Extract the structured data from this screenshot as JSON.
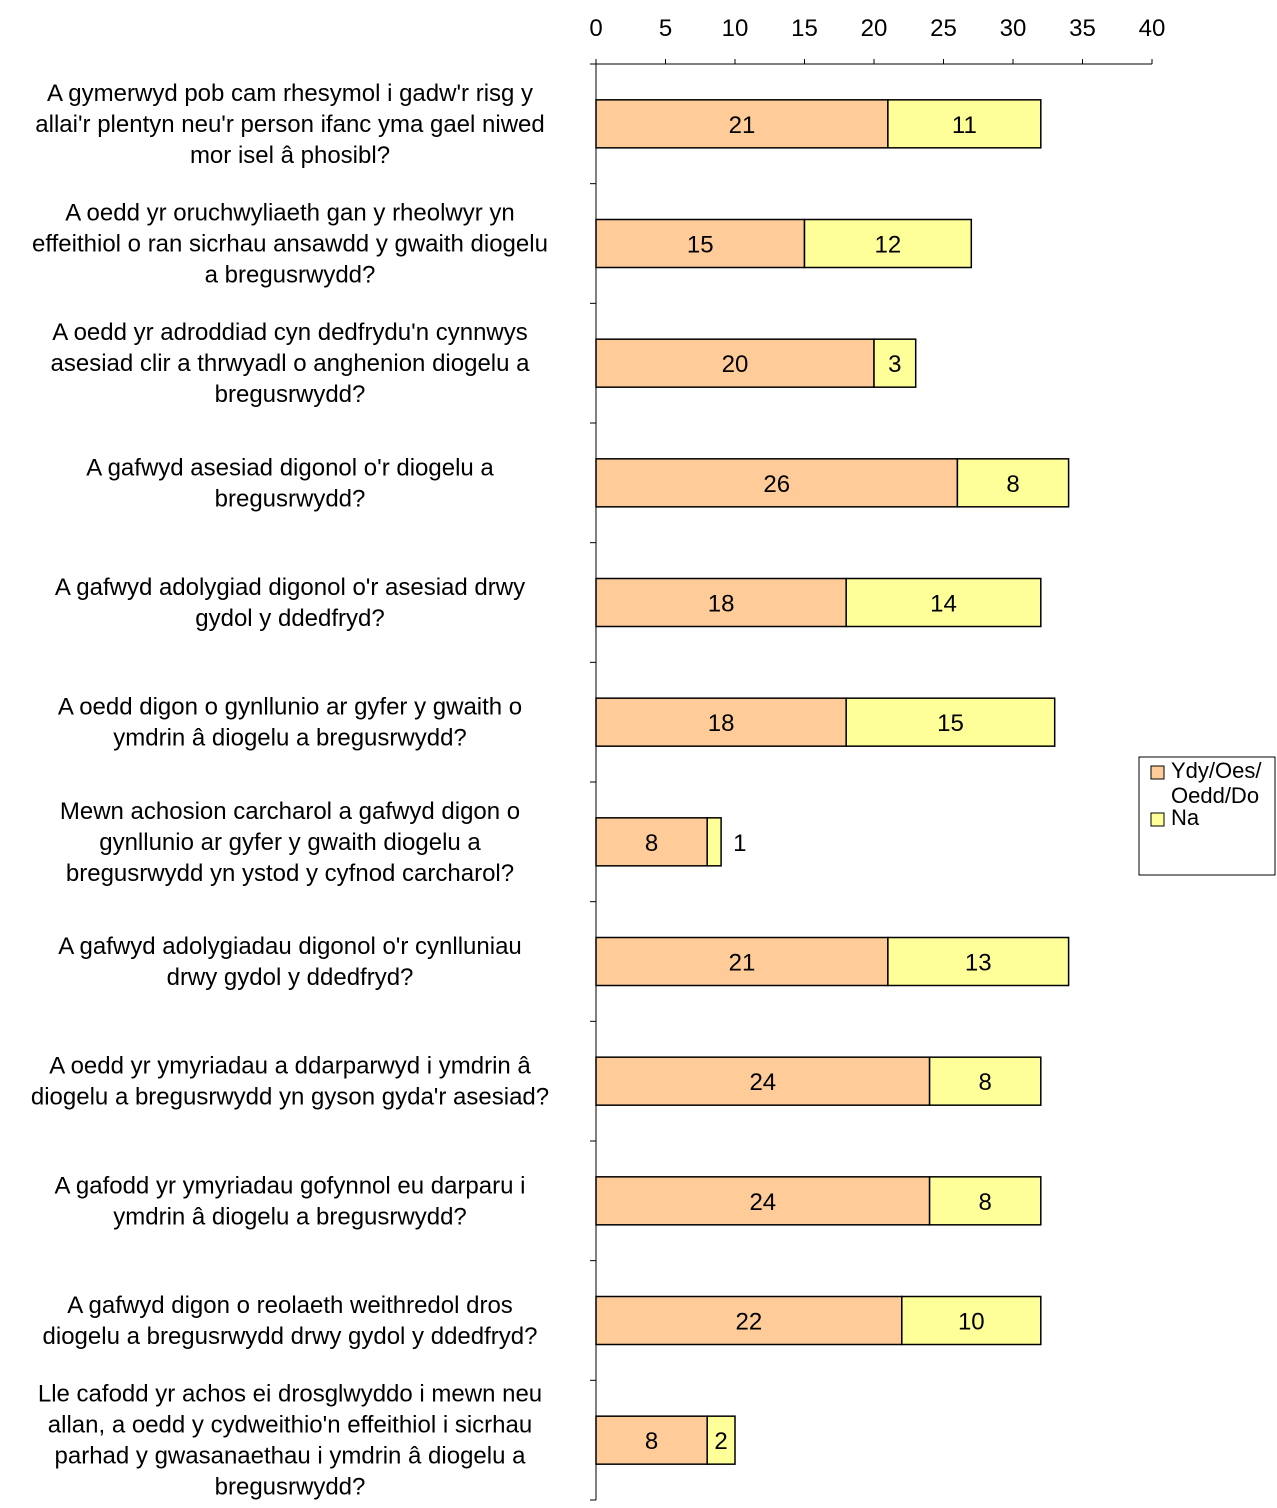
{
  "chart_data": {
    "type": "bar",
    "orientation": "horizontal",
    "stacked": true,
    "categories": [
      [
        "A gymerwyd pob cam rhesymol i gadw'r risg y",
        "allai'r plentyn neu'r person ifanc yma gael niwed",
        "mor isel â phosibl?"
      ],
      [
        "A oedd yr oruchwyliaeth gan y rheolwyr yn",
        "effeithiol o ran sicrhau ansawdd y gwaith diogelu",
        "a bregusrwydd?"
      ],
      [
        "A oedd yr adroddiad cyn dedfrydu'n cynnwys",
        "asesiad clir a thrwyadl o anghenion diogelu a",
        "bregusrwydd?"
      ],
      [
        "A gafwyd asesiad digonol o'r diogelu a",
        "bregusrwydd?"
      ],
      [
        "A gafwyd adolygiad digonol o'r asesiad drwy",
        "gydol y ddedfryd?"
      ],
      [
        "A oedd digon o gynllunio ar gyfer y gwaith o",
        "ymdrin â diogelu a bregusrwydd?"
      ],
      [
        "Mewn achosion carcharol a gafwyd digon o",
        "gynllunio ar gyfer y gwaith diogelu a",
        "bregusrwydd yn ystod y cyfnod carcharol?"
      ],
      [
        "A gafwyd adolygiadau digonol o'r cynlluniau",
        "drwy gydol y ddedfryd?"
      ],
      [
        "A oedd yr ymyriadau a ddarparwyd i ymdrin â",
        "diogelu a bregusrwydd yn gyson gyda'r asesiad?"
      ],
      [
        "A gafodd yr ymyriadau gofynnol eu darparu i",
        "ymdrin â diogelu a bregusrwydd?"
      ],
      [
        "A gafwyd digon o reolaeth weithredol dros",
        "diogelu a bregusrwydd drwy gydol y ddedfryd?"
      ],
      [
        "Lle cafodd yr achos ei drosglwyddo i mewn neu",
        "allan, a oedd y cydweithio'n effeithiol i sicrhau",
        "parhad y gwasanaethau i ymdrin â diogelu a",
        "bregusrwydd?"
      ]
    ],
    "series": [
      {
        "name": "Ydy/Oes/Oedd/Do",
        "color": "#FFCC99",
        "values": [
          21,
          15,
          20,
          26,
          18,
          18,
          8,
          21,
          24,
          24,
          22,
          8
        ]
      },
      {
        "name": "Na",
        "color": "#FFFF99",
        "values": [
          11,
          12,
          3,
          8,
          14,
          15,
          1,
          13,
          8,
          8,
          10,
          2
        ]
      }
    ],
    "xlim": [
      0,
      40
    ],
    "xticks": [
      0,
      5,
      10,
      15,
      20,
      25,
      30,
      35,
      40
    ],
    "axis_position": "top",
    "legend_position": "right",
    "legend_lines": [
      [
        "Ydy/Oes/",
        "Oedd/Do"
      ],
      [
        "Na"
      ]
    ],
    "grid": false
  }
}
